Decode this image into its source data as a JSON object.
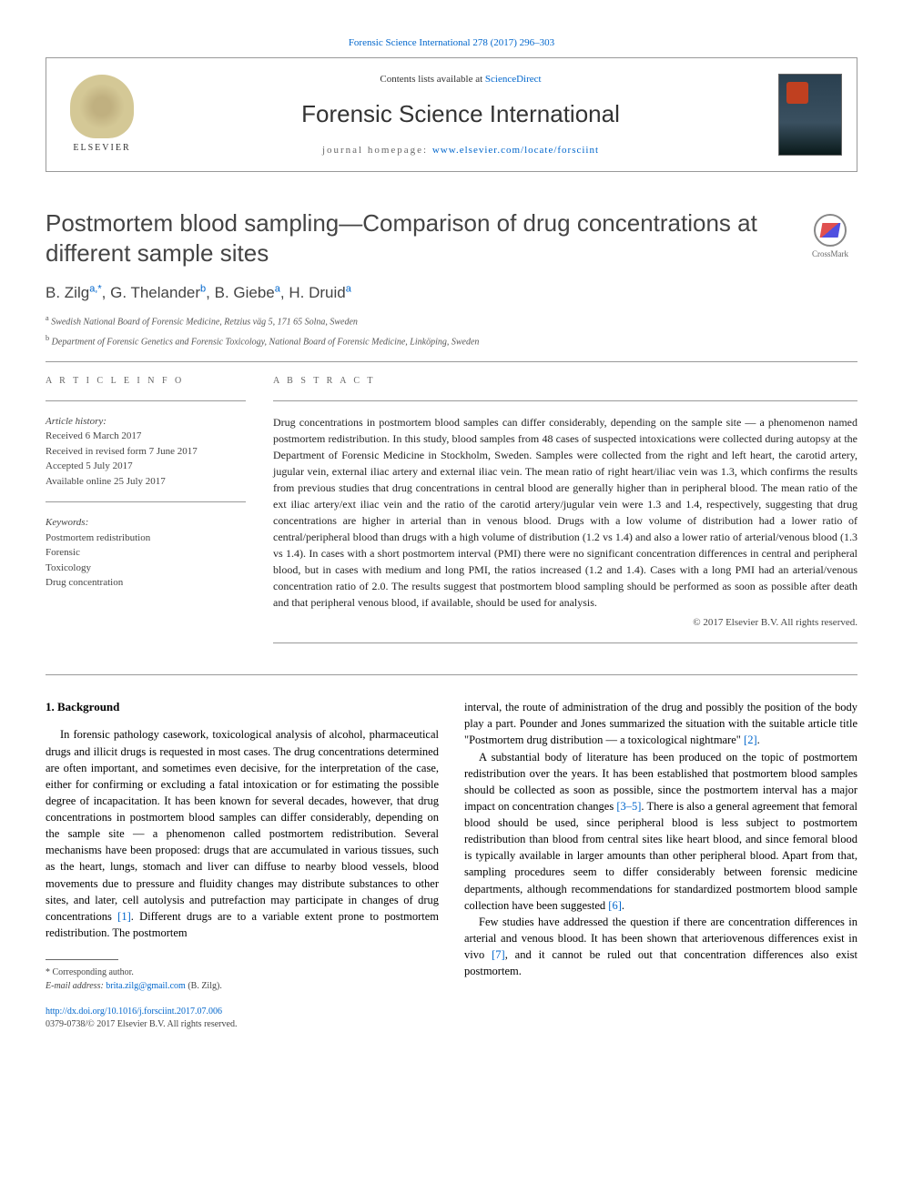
{
  "header": {
    "top_citation_prefix": "Forensic Science International 278 (2017) 296–303",
    "contents_prefix": "Contents lists available at ",
    "contents_link": "ScienceDirect",
    "journal_name": "Forensic Science International",
    "homepage_prefix": "journal homepage: ",
    "homepage_url": "www.elsevier.com/locate/forsciint",
    "elsevier_label": "ELSEVIER"
  },
  "crossmark_label": "CrossMark",
  "title": "Postmortem blood sampling—Comparison of drug concentrations at different sample sites",
  "authors_html": {
    "a1_name": "B. Zilg",
    "a1_sup": "a,*",
    "a2_name": "G. Thelander",
    "a2_sup": "b",
    "a3_name": "B. Giebe",
    "a3_sup": "a",
    "a4_name": "H. Druid",
    "a4_sup": "a"
  },
  "affiliations": {
    "a": "Swedish National Board of Forensic Medicine, Retzius väg 5, 171 65 Solna, Sweden",
    "b": "Department of Forensic Genetics and Forensic Toxicology, National Board of Forensic Medicine, Linköping, Sweden"
  },
  "article_info": {
    "label": "A R T I C L E   I N F O",
    "history_label": "Article history:",
    "received": "Received 6 March 2017",
    "revised": "Received in revised form 7 June 2017",
    "accepted": "Accepted 5 July 2017",
    "online": "Available online 25 July 2017",
    "keywords_label": "Keywords:",
    "keywords": [
      "Postmortem redistribution",
      "Forensic",
      "Toxicology",
      "Drug concentration"
    ]
  },
  "abstract": {
    "label": "A B S T R A C T",
    "text": "Drug concentrations in postmortem blood samples can differ considerably, depending on the sample site — a phenomenon named postmortem redistribution. In this study, blood samples from 48 cases of suspected intoxications were collected during autopsy at the Department of Forensic Medicine in Stockholm, Sweden. Samples were collected from the right and left heart, the carotid artery, jugular vein, external iliac artery and external iliac vein. The mean ratio of right heart/iliac vein was 1.3, which confirms the results from previous studies that drug concentrations in central blood are generally higher than in peripheral blood. The mean ratio of the ext iliac artery/ext iliac vein and the ratio of the carotid artery/jugular vein were 1.3 and 1.4, respectively, suggesting that drug concentrations are higher in arterial than in venous blood. Drugs with a low volume of distribution had a lower ratio of central/peripheral blood than drugs with a high volume of distribution (1.2 vs 1.4) and also a lower ratio of arterial/venous blood (1.3 vs 1.4). In cases with a short postmortem interval (PMI) there were no significant concentration differences in central and peripheral blood, but in cases with medium and long PMI, the ratios increased (1.2 and 1.4). Cases with a long PMI had an arterial/venous concentration ratio of 2.0. The results suggest that postmortem blood sampling should be performed as soon as possible after death and that peripheral venous blood, if available, should be used for analysis.",
    "copyright": "© 2017 Elsevier B.V. All rights reserved."
  },
  "body": {
    "section1_heading": "1. Background",
    "col1_p1": "In forensic pathology casework, toxicological analysis of alcohol, pharmaceutical drugs and illicit drugs is requested in most cases. The drug concentrations determined are often important, and sometimes even decisive, for the interpretation of the case, either for confirming or excluding a fatal intoxication or for estimating the possible degree of incapacitation. It has been known for several decades, however, that drug concentrations in postmortem blood samples can differ considerably, depending on the sample site — a phenomenon called postmortem redistribution. Several mechanisms have been proposed: drugs that are accumulated in various tissues, such as the heart, lungs, stomach and liver can diffuse to nearby blood vessels, blood movements due to pressure and fluidity changes may distribute substances to other sites, and later, cell autolysis and putrefaction may participate in changes of drug concentrations ",
    "col1_ref1": "[1]",
    "col1_p1b": ". Different drugs are to a variable extent prone to postmortem redistribution. The postmortem",
    "col2_p1": "interval, the route of administration of the drug and possibly the position of the body play a part. Pounder and Jones summarized the situation with the suitable article title \"Postmortem drug distribution — a toxicological nightmare\" ",
    "col2_ref2": "[2]",
    "col2_p1b": ".",
    "col2_p2a": "A substantial body of literature has been produced on the topic of postmortem redistribution over the years. It has been established that postmortem blood samples should be collected as soon as possible, since the postmortem interval has a major impact on concentration changes ",
    "col2_ref35": "[3–5]",
    "col2_p2b": ". There is also a general agreement that femoral blood should be used, since peripheral blood is less subject to postmortem redistribution than blood from central sites like heart blood, and since femoral blood is typically available in larger amounts than other peripheral blood. Apart from that, sampling procedures seem to differ considerably between forensic medicine departments, although recommendations for standardized postmortem blood sample collection have been suggested ",
    "col2_ref6": "[6]",
    "col2_p2c": ".",
    "col2_p3a": "Few studies have addressed the question if there are concentration differences in arterial and venous blood. It has been shown that arteriovenous differences exist in vivo ",
    "col2_ref7": "[7]",
    "col2_p3b": ", and it cannot be ruled out that concentration differences also exist postmortem."
  },
  "footnote": {
    "corresponding": "* Corresponding author.",
    "email_label": "E-mail address: ",
    "email": "brita.zilg@gmail.com",
    "email_name": " (B. Zilg)."
  },
  "doi": {
    "url": "http://dx.doi.org/10.1016/j.forsciint.2017.07.006",
    "issn_line": "0379-0738/© 2017 Elsevier B.V. All rights reserved."
  },
  "colors": {
    "link": "#0066cc",
    "text": "#000000",
    "muted": "#666666",
    "rule": "#999999"
  }
}
